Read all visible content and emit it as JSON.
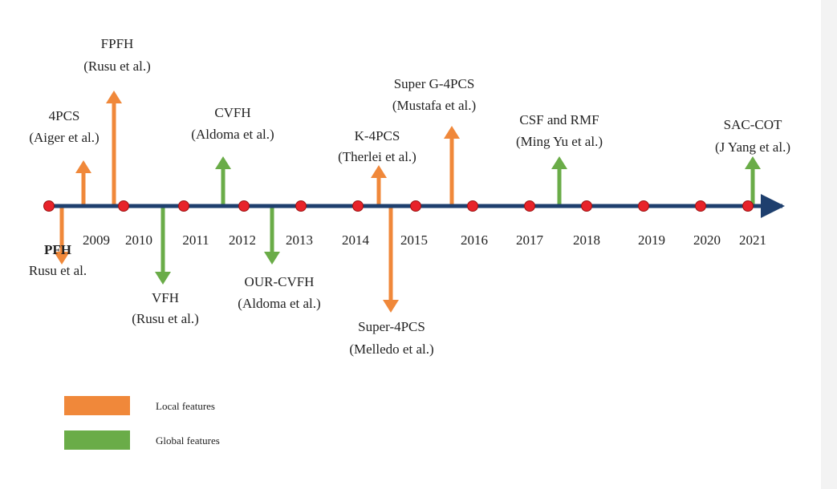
{
  "colors": {
    "local": "#f0883a",
    "global": "#6aac48",
    "axis": "#1e3f6e",
    "dot": "#e8232a",
    "text": "#222222"
  },
  "years": [
    {
      "label": "2009",
      "bold": false
    },
    {
      "label": "2010",
      "bold": false
    },
    {
      "label": "2011",
      "bold": false
    },
    {
      "label": "2012",
      "bold": false
    },
    {
      "label": "2013",
      "bold": false
    },
    {
      "label": "2014",
      "bold": false
    },
    {
      "label": "2015",
      "bold": false
    },
    {
      "label": "2016",
      "bold": false
    },
    {
      "label": "2017",
      "bold": false
    },
    {
      "label": "2018",
      "bold": false
    },
    {
      "label": "2019",
      "bold": false
    },
    {
      "label": "2020",
      "bold": false
    },
    {
      "label": "2021",
      "bold": false
    }
  ],
  "milestones": [
    {
      "id": "pfh",
      "name": "PFH",
      "authors": "Rusu et al.",
      "type": "local",
      "direction": "down",
      "bold": true
    },
    {
      "id": "4pcs",
      "name": "4PCS",
      "authors": "(Aiger et al.)",
      "type": "local",
      "direction": "up",
      "bold": false
    },
    {
      "id": "fpfh",
      "name": "FPFH",
      "authors": "(Rusu et al.)",
      "type": "local",
      "direction": "up",
      "bold": false
    },
    {
      "id": "vfh",
      "name": "VFH",
      "authors": "(Rusu et al.)",
      "type": "global",
      "direction": "down",
      "bold": false
    },
    {
      "id": "cvfh",
      "name": "CVFH",
      "authors": "(Aldoma et al.)",
      "type": "global",
      "direction": "up",
      "bold": false
    },
    {
      "id": "our-cvfh",
      "name": "OUR-CVFH",
      "authors": "(Aldoma et al.)",
      "type": "global",
      "direction": "down",
      "bold": false
    },
    {
      "id": "k-4pcs",
      "name": "K-4PCS",
      "authors": "(Therlei et al.)",
      "type": "local",
      "direction": "up",
      "bold": false
    },
    {
      "id": "super-4pcs",
      "name": "Super-4PCS",
      "authors": "(Melledo et al.)",
      "type": "local",
      "direction": "down",
      "bold": false
    },
    {
      "id": "super-g-4pcs",
      "name": "Super G-4PCS",
      "authors": "(Mustafa et al.)",
      "type": "local",
      "direction": "up",
      "bold": false
    },
    {
      "id": "csf-rmf",
      "name": "CSF and RMF",
      "authors": "(Ming Yu et al.)",
      "type": "global",
      "direction": "up",
      "bold": false
    },
    {
      "id": "sac-cot",
      "name": "SAC-COT",
      "authors": "(J Yang et al.)",
      "type": "global",
      "direction": "up",
      "bold": false
    }
  ],
  "legend": [
    {
      "type": "local",
      "label": "Local features"
    },
    {
      "type": "global",
      "label": "Global features"
    }
  ]
}
